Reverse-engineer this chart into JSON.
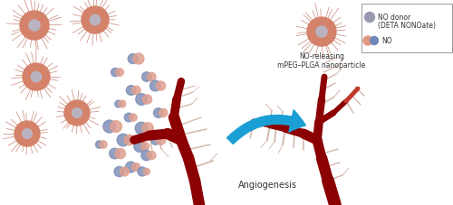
{
  "bg_color": "#ffffff",
  "arrow_color": "#1a9fd4",
  "vessel_dark": "#8b0000",
  "vessel_mid": "#c0392b",
  "vessel_light": "#d4695a",
  "vessel_thin": "#c8a090",
  "nanoparticle_color": "#d4826a",
  "nanoparticle_spike": "#c07060",
  "nanoparticle_inner": "#b8b8c8",
  "no_blue": "#8090b8",
  "no_salmon": "#e0a090",
  "no_pink": "#d4b0a8",
  "legend_text1": "NO donor",
  "legend_text1b": "(DETA NONOate)",
  "legend_text2": "NO",
  "label_nanoparticle": "NO-releasing\nmPEG–PLGA nanoparticle",
  "label_angiogenesis": "Angiogenesis",
  "figsize": [
    5.0,
    2.27
  ],
  "dpi": 100
}
